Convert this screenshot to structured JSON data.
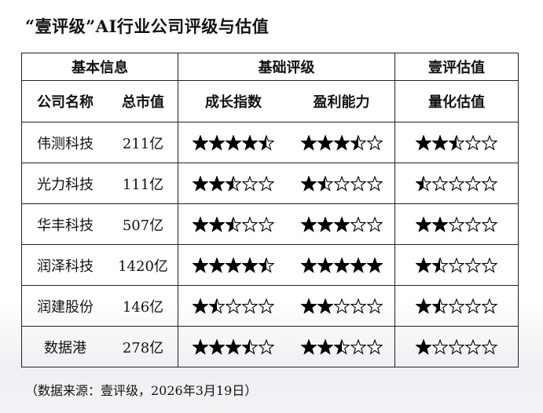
{
  "title": "“壹评级”AI行业公司评级与估值",
  "groups": [
    "基本信息",
    "基础评级",
    "壹评估值"
  ],
  "columns": [
    "公司名称",
    "总市值",
    "成长指数",
    "盈利能力",
    "量化估值"
  ],
  "rows": [
    {
      "company": "伟测科技",
      "cap": "211亿",
      "growth": 4.5,
      "profit": 3.5,
      "valuation": 2.5
    },
    {
      "company": "光力科技",
      "cap": "111亿",
      "growth": 2.5,
      "profit": 1.5,
      "valuation": 0.5
    },
    {
      "company": "华丰科技",
      "cap": "507亿",
      "growth": 2.5,
      "profit": 3,
      "valuation": 2
    },
    {
      "company": "润泽科技",
      "cap": "1420亿",
      "growth": 4.5,
      "profit": 5,
      "valuation": 1.5
    },
    {
      "company": "润建股份",
      "cap": "146亿",
      "growth": 1.5,
      "profit": 2,
      "valuation": 1.5
    },
    {
      "company": "数据港",
      "cap": "278亿",
      "growth": 3.5,
      "profit": 2.5,
      "valuation": 1
    }
  ],
  "max_stars": 5,
  "footnote": "（数据来源：壹评级，2026年3月19日）"
}
